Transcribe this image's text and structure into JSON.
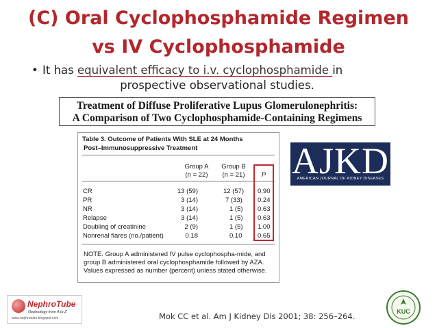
{
  "slide": {
    "title_line1": "(C) Oral Cyclophosphamide Regimen",
    "title_line2": "vs IV Cyclophosphamide",
    "bullet": {
      "prefix": "It has ",
      "underlined": "equivalent efficacy to i.v. cyclophosphamide ",
      "suffix": "in",
      "line2": "prospective observational studies."
    },
    "study_title_line1": "Treatment of Diffuse Proliferative Lupus Glomerulonephritis:",
    "study_title_line2": "A Comparison of Two Cyclophosphamide-Containing Regimens",
    "table": {
      "caption_line1": "Table 3.   Outcome of Patients With SLE at 24 Months",
      "caption_line2": "Post–Immunosuppressive Treatment",
      "col_a": "Group A",
      "col_a_n": "(n = 22)",
      "col_b": "Group B",
      "col_b_n": "(n = 21)",
      "col_p": "P",
      "rows": [
        {
          "label": "CR",
          "a": "13 (59)",
          "b": "12 (57)",
          "p": "0.90"
        },
        {
          "label": "PR",
          "a": "3 (14)",
          "b": "7 (33)",
          "p": "0.24"
        },
        {
          "label": "NR",
          "a": "3 (14)",
          "b": "1 (5)",
          "p": "0.63"
        },
        {
          "label": "Relapse",
          "a": "3 (14)",
          "b": "1 (5)",
          "p": "0.63"
        },
        {
          "label": "Doubling of creatinine",
          "a": "2 (9)",
          "b": "1 (5)",
          "p": "1.00"
        },
        {
          "label": "Nonrenal flares (no./patient)",
          "a": "0.18",
          "b": "0.10",
          "p": "0.65"
        }
      ],
      "note": "NOTE.  Group A administered IV pulse cyclophospha-mide, and group B administered oral cyclophosphamide followed by AZA. Values expressed as number (percent) unless stated otherwise."
    },
    "journal_logo": {
      "big": "AJKD",
      "small": "AMERICAN JOURNAL OF KIDNEY DISEASES"
    },
    "nephrotube": {
      "name": "NephroTube",
      "tagline": "Nephrology from A to Z",
      "url": "www.nephrotube.blogspot.com"
    },
    "citation": "Mok CC et al. Am J Kidney Dis 2001; 38: 256–264.",
    "seal_text": "KUC",
    "colors": {
      "title": "#b2272c",
      "p_box": "#c0282e",
      "logo_bg": "#1d2d5a"
    }
  }
}
